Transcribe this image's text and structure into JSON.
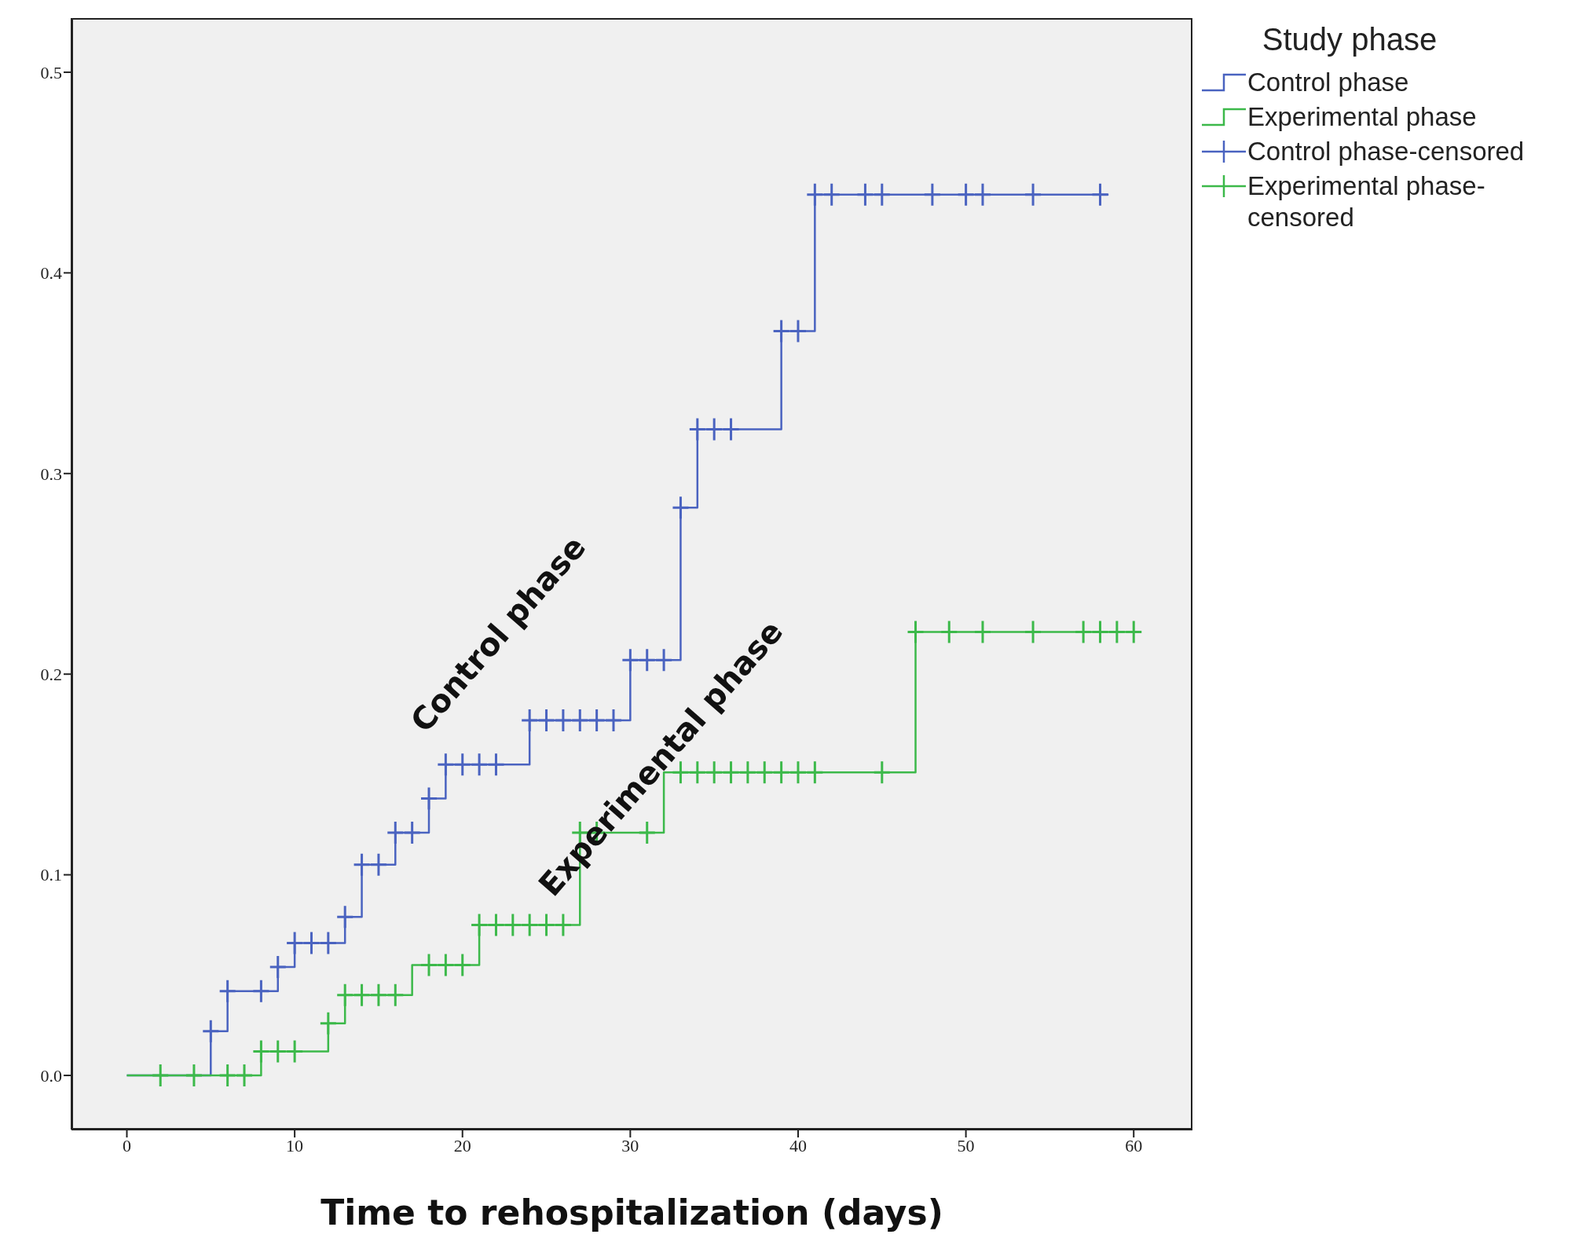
{
  "chart_data": {
    "type": "step",
    "xlabel": "Time to rehospitalization (days)",
    "legend_title": "Study phase",
    "legend": "top right",
    "grid": false,
    "xlim": [
      -3.3,
      63.5
    ],
    "ylim": [
      -0.027,
      0.527
    ],
    "xticks": [
      0,
      10,
      20,
      30,
      40,
      50,
      60
    ],
    "yticks": [
      {
        "value": 0,
        "label": "0.0"
      },
      {
        "value": 0.1,
        "label": "0.1"
      },
      {
        "value": 0.2,
        "label": "0.2"
      },
      {
        "value": 0.3,
        "label": "0.3"
      },
      {
        "value": 0.4,
        "label": "0.4"
      },
      {
        "value": 0.5,
        "label": "0.5"
      }
    ],
    "series": [
      {
        "name": "Control phase",
        "color": "#4a63c0",
        "x": [
          0,
          5,
          6,
          9,
          10,
          13,
          14,
          16,
          18,
          19,
          24,
          30,
          33,
          34,
          39,
          41,
          58.5
        ],
        "values": [
          0,
          0.022,
          0.042,
          0.054,
          0.066,
          0.079,
          0.105,
          0.121,
          0.138,
          0.155,
          0.177,
          0.207,
          0.283,
          0.322,
          0.371,
          0.439,
          0.439
        ]
      },
      {
        "name": "Experimental phase",
        "color": "#3cb94a",
        "x": [
          0,
          8,
          12,
          13,
          17,
          21,
          27,
          32,
          47,
          60.2
        ],
        "values": [
          0,
          0.012,
          0.026,
          0.04,
          0.055,
          0.075,
          0.121,
          0.151,
          0.221,
          0.221
        ]
      },
      {
        "name": "Control phase-censored",
        "type": "scatter",
        "marker": "cross",
        "color": "#4a63c0",
        "x": [
          5,
          6,
          8,
          9,
          10,
          11,
          12,
          13,
          14,
          15,
          16,
          17,
          18,
          19,
          20,
          21,
          22,
          24,
          25,
          26,
          27,
          28,
          29,
          30,
          31,
          32,
          33,
          34,
          35,
          36,
          39,
          40,
          41,
          42,
          44,
          45,
          48,
          50,
          51,
          54,
          58
        ],
        "values": [
          0.022,
          0.042,
          0.042,
          0.054,
          0.066,
          0.066,
          0.066,
          0.079,
          0.105,
          0.105,
          0.121,
          0.121,
          0.138,
          0.155,
          0.155,
          0.155,
          0.155,
          0.177,
          0.177,
          0.177,
          0.177,
          0.177,
          0.177,
          0.207,
          0.207,
          0.207,
          0.283,
          0.322,
          0.322,
          0.322,
          0.371,
          0.371,
          0.439,
          0.439,
          0.439,
          0.439,
          0.439,
          0.439,
          0.439,
          0.439,
          0.439
        ]
      },
      {
        "name": "Experimental phase-censored",
        "type": "scatter",
        "marker": "cross",
        "color": "#3cb94a",
        "x": [
          2,
          4,
          6,
          7,
          8,
          9,
          10,
          12,
          13,
          14,
          15,
          16,
          18,
          19,
          20,
          21,
          22,
          23,
          24,
          25,
          26,
          27,
          28,
          31,
          33,
          34,
          35,
          36,
          37,
          38,
          39,
          40,
          41,
          45,
          47,
          49,
          51,
          54,
          57,
          58,
          59,
          60
        ],
        "values": [
          0,
          0,
          0,
          0,
          0.012,
          0.012,
          0.012,
          0.026,
          0.04,
          0.04,
          0.04,
          0.04,
          0.055,
          0.055,
          0.055,
          0.075,
          0.075,
          0.075,
          0.075,
          0.075,
          0.075,
          0.121,
          0.121,
          0.121,
          0.151,
          0.151,
          0.151,
          0.151,
          0.151,
          0.151,
          0.151,
          0.151,
          0.151,
          0.151,
          0.221,
          0.221,
          0.221,
          0.221,
          0.221,
          0.221,
          0.221,
          0.221
        ]
      }
    ],
    "annotations": [
      "Control phase",
      "Experimental phase"
    ]
  }
}
